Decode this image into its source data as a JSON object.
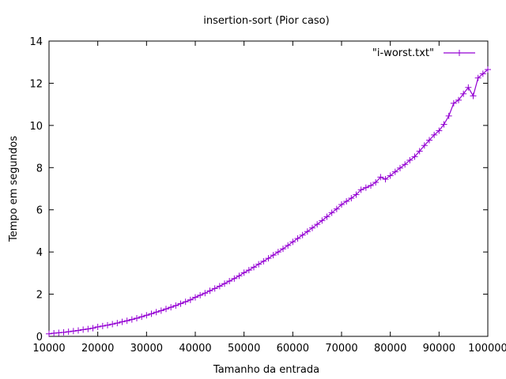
{
  "chart_data": {
    "type": "line",
    "title": "insertion-sort (Pior caso)",
    "xlabel": "Tamanho da entrada",
    "ylabel": "Tempo em segundos",
    "xlim": [
      10000,
      100000
    ],
    "ylim": [
      0,
      14
    ],
    "xticks": [
      "10000",
      "20000",
      "30000",
      "40000",
      "50000",
      "60000",
      "70000",
      "80000",
      "90000",
      "100000"
    ],
    "yticks": [
      "0",
      "2",
      "4",
      "6",
      "8",
      "10",
      "12",
      "14"
    ],
    "grid": false,
    "legend_position": "top-right",
    "series": [
      {
        "name": "\"i-worst.txt\"",
        "color": "#9400d3",
        "marker": "plus",
        "x": [
          10000,
          11000,
          12000,
          13000,
          14000,
          15000,
          16000,
          17000,
          18000,
          19000,
          20000,
          21000,
          22000,
          23000,
          24000,
          25000,
          26000,
          27000,
          28000,
          29000,
          30000,
          31000,
          32000,
          33000,
          34000,
          35000,
          36000,
          37000,
          38000,
          39000,
          40000,
          41000,
          42000,
          43000,
          44000,
          45000,
          46000,
          47000,
          48000,
          49000,
          50000,
          51000,
          52000,
          53000,
          54000,
          55000,
          56000,
          57000,
          58000,
          59000,
          60000,
          61000,
          62000,
          63000,
          64000,
          65000,
          66000,
          67000,
          68000,
          69000,
          70000,
          71000,
          72000,
          73000,
          74000,
          75000,
          76000,
          77000,
          78000,
          79000,
          80000,
          81000,
          82000,
          83000,
          84000,
          85000,
          86000,
          87000,
          88000,
          89000,
          90000,
          91000,
          92000,
          93000,
          94000,
          95000,
          96000,
          97000,
          98000,
          99000,
          100000
        ],
        "y": [
          0.12,
          0.15,
          0.17,
          0.19,
          0.22,
          0.25,
          0.28,
          0.32,
          0.35,
          0.39,
          0.45,
          0.49,
          0.53,
          0.58,
          0.63,
          0.69,
          0.74,
          0.8,
          0.86,
          0.93,
          1.0,
          1.07,
          1.15,
          1.22,
          1.3,
          1.38,
          1.46,
          1.55,
          1.64,
          1.73,
          1.85,
          1.95,
          2.05,
          2.16,
          2.27,
          2.38,
          2.5,
          2.62,
          2.74,
          2.87,
          3.02,
          3.14,
          3.28,
          3.42,
          3.56,
          3.7,
          3.85,
          4.0,
          4.15,
          4.31,
          4.48,
          4.64,
          4.8,
          4.97,
          5.14,
          5.31,
          5.49,
          5.67,
          5.86,
          6.04,
          6.25,
          6.4,
          6.55,
          6.72,
          6.95,
          7.05,
          7.15,
          7.3,
          7.55,
          7.45,
          7.62,
          7.8,
          7.98,
          8.15,
          8.35,
          8.52,
          8.78,
          9.05,
          9.3,
          9.55,
          9.75,
          10.05,
          10.45,
          11.05,
          11.2,
          11.5,
          11.8,
          11.4,
          12.25,
          12.45,
          12.65
        ]
      }
    ]
  }
}
